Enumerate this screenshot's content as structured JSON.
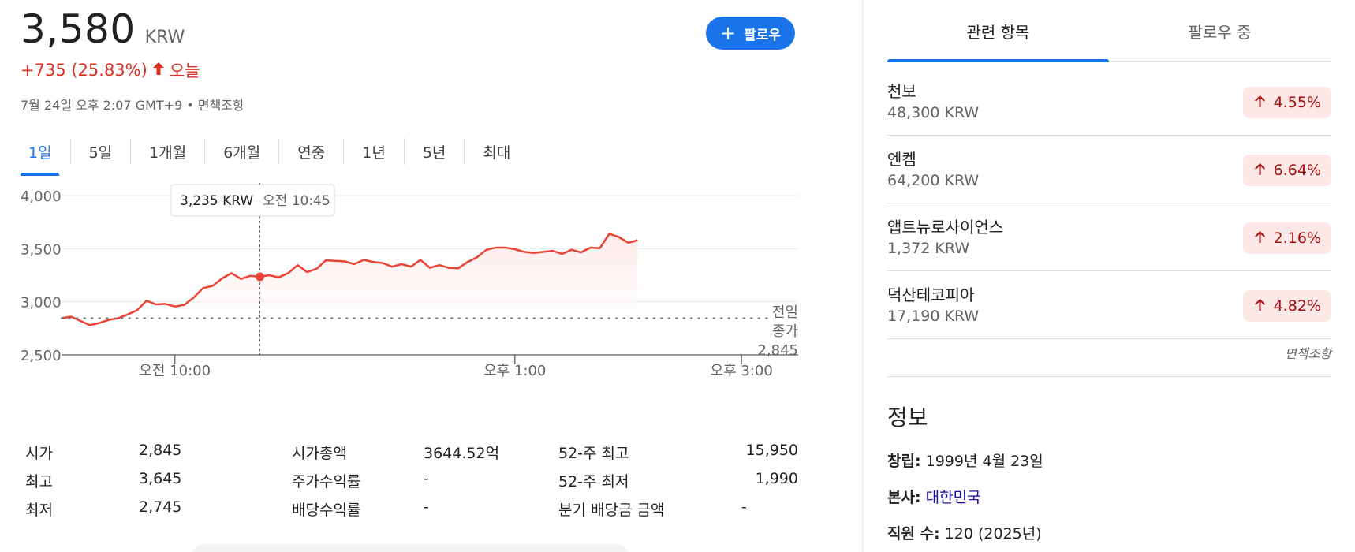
{
  "quote": {
    "price": "3,580",
    "currency": "KRW",
    "change": "+735 (25.83%)",
    "change_period": "오늘",
    "timestamp": "7월 24일 오후 2:07 GMT+9 • 면책조항",
    "follow_label": "팔로우",
    "colors": {
      "up": "#d93025",
      "accent": "#1a73e8"
    }
  },
  "range_tabs": [
    "1일",
    "5일",
    "1개월",
    "6개월",
    "연중",
    "1년",
    "5년",
    "최대"
  ],
  "active_range": "1일",
  "chart_data": {
    "type": "line",
    "ylim": [
      2500,
      4000
    ],
    "yticks": [
      "4,000",
      "3,500",
      "3,000",
      "2,500"
    ],
    "xticks": [
      "오전 10:00",
      "오후 1:00",
      "오후 3:00"
    ],
    "x_session": [
      "09:00",
      "15:30"
    ],
    "series": [
      {
        "x": [
          "09:00",
          "09:05",
          "09:10",
          "09:15",
          "09:20",
          "09:25",
          "09:30",
          "09:35",
          "09:40",
          "09:45",
          "09:50",
          "09:55",
          "10:00",
          "10:05",
          "10:10",
          "10:15",
          "10:20",
          "10:25",
          "10:30",
          "10:35",
          "10:40",
          "10:45",
          "10:50",
          "10:55",
          "11:00",
          "11:05",
          "11:10",
          "11:15",
          "11:20",
          "11:25",
          "11:30",
          "11:35",
          "11:40",
          "11:45",
          "11:50",
          "11:55",
          "12:00",
          "12:05",
          "12:10",
          "12:15",
          "12:20",
          "12:25",
          "12:30",
          "12:35",
          "12:40",
          "12:45",
          "12:50",
          "12:55",
          "13:00",
          "13:05",
          "13:10",
          "13:15",
          "13:20",
          "13:25",
          "13:30",
          "13:35",
          "13:40",
          "13:45",
          "13:50",
          "13:55",
          "14:00",
          "14:05"
        ],
        "values": [
          2845,
          2860,
          2820,
          2780,
          2800,
          2830,
          2845,
          2880,
          2920,
          3010,
          2975,
          2980,
          2955,
          2970,
          3040,
          3130,
          3150,
          3220,
          3270,
          3215,
          3245,
          3235,
          3250,
          3230,
          3270,
          3345,
          3280,
          3310,
          3390,
          3385,
          3380,
          3355,
          3395,
          3375,
          3365,
          3330,
          3355,
          3330,
          3395,
          3320,
          3345,
          3320,
          3315,
          3375,
          3420,
          3490,
          3510,
          3510,
          3495,
          3470,
          3460,
          3470,
          3480,
          3450,
          3490,
          3465,
          3510,
          3505,
          3640,
          3610,
          3555,
          3580
        ]
      }
    ],
    "highlight": {
      "x": "10:45",
      "value": 3235,
      "label_price": "3,235 KRW",
      "label_time": "오전 10:45"
    },
    "previous_close": {
      "label_1": "전일",
      "label_2": "종가",
      "value_text": "2,845",
      "value": 2845
    }
  },
  "stats": {
    "col1": [
      {
        "label": "시가",
        "value": "2,845"
      },
      {
        "label": "최고",
        "value": "3,645"
      },
      {
        "label": "최저",
        "value": "2,745"
      }
    ],
    "col2": [
      {
        "label": "시가총액",
        "value": "3644.52억"
      },
      {
        "label": "주가수익률",
        "value": "-"
      },
      {
        "label": "배당수익률",
        "value": "-"
      }
    ],
    "col3": [
      {
        "label": "52-주 최고",
        "value": "15,950"
      },
      {
        "label": "52-주 최저",
        "value": "1,990"
      },
      {
        "label": "분기 배당금 금액",
        "value": "-"
      }
    ]
  },
  "right_tabs": [
    "관련 항목",
    "팔로우 중"
  ],
  "related": [
    {
      "name": "천보",
      "price": "48,300 KRW",
      "change": "4.55%"
    },
    {
      "name": "엔켐",
      "price": "64,200 KRW",
      "change": "6.64%"
    },
    {
      "name": "앱트뉴로사이언스",
      "price": "1,372 KRW",
      "change": "2.16%"
    },
    {
      "name": "덕산테코피아",
      "price": "17,190 KRW",
      "change": "4.82%"
    }
  ],
  "disclaimer": "면책조항",
  "info": {
    "title": "정보",
    "founded_label": "창립:",
    "founded_value": "1999년 4월 23일",
    "hq_label": "본사:",
    "hq_value": "대한민국",
    "employees_label": "직원 수:",
    "employees_value": "120 (2025년)"
  }
}
